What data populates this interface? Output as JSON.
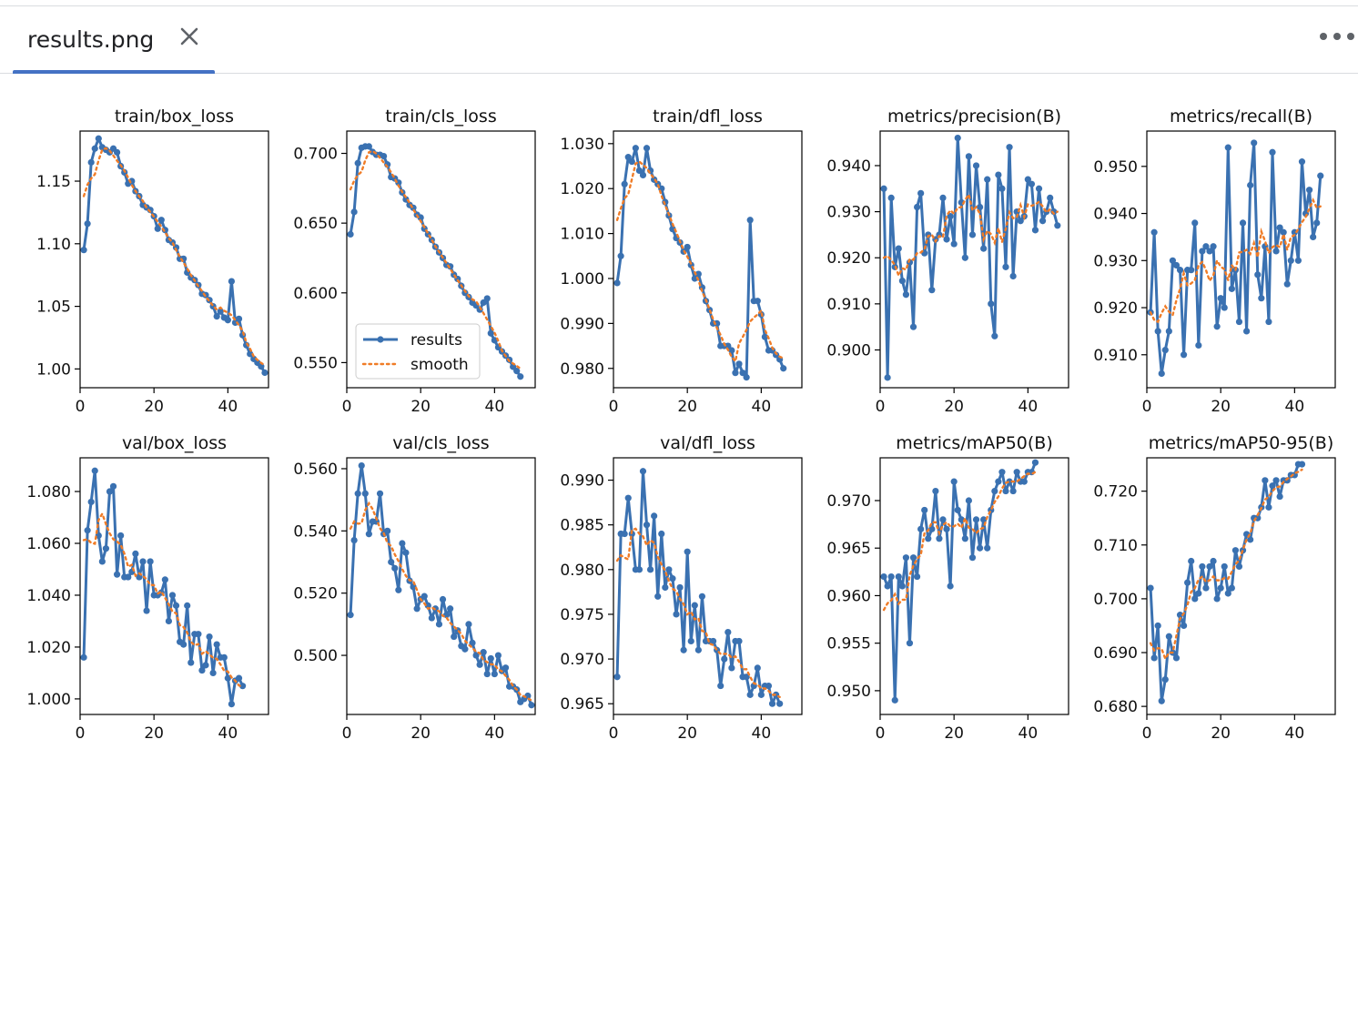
{
  "tab": {
    "title": "results.png"
  },
  "icons": {
    "close": "close-icon",
    "more": "more-horiz-icon"
  },
  "colors": {
    "series": "#3a71b1",
    "smooth": "#f07c27",
    "tab_accent": "#4472c4"
  },
  "chart_data": [
    {
      "type": "line",
      "title": "train/box_loss",
      "xlim": [
        0,
        51
      ],
      "xticks": [
        0,
        20,
        40
      ],
      "ylim": [
        0.985,
        1.19
      ],
      "yticks": [
        1.0,
        1.05,
        1.1,
        1.15
      ],
      "series": [
        {
          "name": "results",
          "values": [
            1.095,
            1.116,
            1.165,
            1.176,
            1.184,
            1.177,
            1.175,
            1.173,
            1.176,
            1.173,
            1.162,
            1.157,
            1.148,
            1.15,
            1.142,
            1.138,
            1.131,
            1.129,
            1.127,
            1.122,
            1.112,
            1.119,
            1.111,
            1.103,
            1.101,
            1.097,
            1.088,
            1.088,
            1.077,
            1.073,
            1.071,
            1.067,
            1.06,
            1.059,
            1.055,
            1.05,
            1.042,
            1.046,
            1.041,
            1.039,
            1.07,
            1.037,
            1.04,
            1.027,
            1.019,
            1.012,
            1.008,
            1.005,
            1.002,
            0.997
          ]
        },
        {
          "name": "smooth"
        }
      ]
    },
    {
      "type": "line",
      "title": "train/cls_loss",
      "xlim": [
        0,
        51
      ],
      "xticks": [
        0,
        20,
        40
      ],
      "ylim": [
        0.532,
        0.716
      ],
      "yticks": [
        0.55,
        0.6,
        0.65,
        0.7
      ],
      "legend": {
        "placement": "lower-left",
        "entries": [
          "results",
          "smooth"
        ]
      },
      "series": [
        {
          "name": "results",
          "values": [
            0.642,
            0.658,
            0.693,
            0.704,
            0.705,
            0.705,
            0.701,
            0.699,
            0.699,
            0.698,
            0.692,
            0.683,
            0.682,
            0.679,
            0.672,
            0.667,
            0.663,
            0.661,
            0.656,
            0.654,
            0.646,
            0.642,
            0.638,
            0.633,
            0.629,
            0.625,
            0.62,
            0.619,
            0.613,
            0.61,
            0.605,
            0.6,
            0.597,
            0.593,
            0.591,
            0.588,
            0.593,
            0.596,
            0.571,
            0.566,
            0.561,
            0.558,
            0.555,
            0.552,
            0.547,
            0.544,
            0.54
          ]
        },
        {
          "name": "smooth"
        }
      ]
    },
    {
      "type": "line",
      "title": "train/dfl_loss",
      "xlim": [
        0,
        51
      ],
      "xticks": [
        0,
        20,
        40
      ],
      "ylim": [
        0.9757,
        1.0328
      ],
      "yticks": [
        0.98,
        0.99,
        1.0,
        1.01,
        1.02,
        1.03
      ],
      "series": [
        {
          "name": "results",
          "values": [
            0.999,
            1.005,
            1.021,
            1.027,
            1.026,
            1.029,
            1.024,
            1.023,
            1.029,
            1.024,
            1.022,
            1.021,
            1.02,
            1.017,
            1.014,
            1.011,
            1.009,
            1.008,
            1.006,
            1.007,
            1.003,
            1.0,
            1.001,
            0.998,
            0.995,
            0.993,
            0.99,
            0.99,
            0.985,
            0.985,
            0.985,
            0.984,
            0.979,
            0.981,
            0.979,
            0.978,
            1.013,
            0.995,
            0.995,
            0.992,
            0.987,
            0.984,
            0.984,
            0.983,
            0.982,
            0.98
          ]
        },
        {
          "name": "smooth"
        }
      ]
    },
    {
      "type": "line",
      "title": "metrics/precision(B)",
      "xlim": [
        0,
        51
      ],
      "xticks": [
        0,
        20,
        40
      ],
      "ylim": [
        0.8918,
        0.9475
      ],
      "yticks": [
        0.9,
        0.91,
        0.92,
        0.93,
        0.94
      ],
      "series": [
        {
          "name": "results",
          "values": [
            0.935,
            0.894,
            0.933,
            0.918,
            0.922,
            0.915,
            0.912,
            0.919,
            0.905,
            0.931,
            0.934,
            0.921,
            0.925,
            0.913,
            0.924,
            0.925,
            0.933,
            0.924,
            0.929,
            0.923,
            0.946,
            0.932,
            0.92,
            0.942,
            0.925,
            0.94,
            0.931,
            0.922,
            0.937,
            0.91,
            0.903,
            0.938,
            0.935,
            0.918,
            0.944,
            0.916,
            0.93,
            0.928,
            0.929,
            0.937,
            0.936,
            0.926,
            0.935,
            0.928,
            0.93,
            0.933,
            0.93,
            0.927
          ]
        },
        {
          "name": "smooth"
        }
      ]
    },
    {
      "type": "line",
      "title": "metrics/recall(B)",
      "xlim": [
        0,
        51
      ],
      "xticks": [
        0,
        20,
        40
      ],
      "ylim": [
        0.903,
        0.9575
      ],
      "yticks": [
        0.91,
        0.92,
        0.93,
        0.94,
        0.95
      ],
      "series": [
        {
          "name": "results",
          "values": [
            0.919,
            0.936,
            0.915,
            0.906,
            0.911,
            0.915,
            0.93,
            0.929,
            0.928,
            0.91,
            0.928,
            0.928,
            0.938,
            0.912,
            0.932,
            0.933,
            0.932,
            0.933,
            0.916,
            0.922,
            0.92,
            0.954,
            0.924,
            0.928,
            0.917,
            0.938,
            0.915,
            0.946,
            0.955,
            0.927,
            0.922,
            0.933,
            0.917,
            0.953,
            0.932,
            0.937,
            0.936,
            0.925,
            0.93,
            0.936,
            0.93,
            0.951,
            0.94,
            0.945,
            0.935,
            0.938,
            0.948
          ]
        },
        {
          "name": "smooth"
        }
      ]
    },
    {
      "type": "line",
      "title": "val/box_loss",
      "xlim": [
        0,
        51
      ],
      "xticks": [
        0,
        20,
        40
      ],
      "ylim": [
        0.994,
        1.093
      ],
      "yticks": [
        1.0,
        1.02,
        1.04,
        1.06,
        1.08
      ],
      "series": [
        {
          "name": "results",
          "values": [
            1.016,
            1.065,
            1.076,
            1.088,
            1.063,
            1.053,
            1.058,
            1.08,
            1.082,
            1.048,
            1.063,
            1.047,
            1.047,
            1.049,
            1.056,
            1.047,
            1.053,
            1.034,
            1.053,
            1.04,
            1.04,
            1.041,
            1.046,
            1.03,
            1.04,
            1.036,
            1.022,
            1.021,
            1.036,
            1.014,
            1.025,
            1.025,
            1.011,
            1.013,
            1.024,
            1.01,
            1.021,
            1.016,
            1.016,
            1.008,
            0.998,
            1.007,
            1.008,
            1.005
          ]
        },
        {
          "name": "smooth"
        }
      ]
    },
    {
      "type": "line",
      "title": "val/cls_loss",
      "xlim": [
        0,
        51
      ],
      "xticks": [
        0,
        20,
        40
      ],
      "ylim": [
        0.481,
        0.5635
      ],
      "yticks": [
        0.5,
        0.52,
        0.54,
        0.56
      ],
      "series": [
        {
          "name": "results",
          "values": [
            0.513,
            0.537,
            0.552,
            0.561,
            0.552,
            0.539,
            0.543,
            0.543,
            0.552,
            0.539,
            0.54,
            0.53,
            0.528,
            0.521,
            0.536,
            0.533,
            0.524,
            0.522,
            0.515,
            0.518,
            0.519,
            0.516,
            0.512,
            0.515,
            0.51,
            0.518,
            0.513,
            0.515,
            0.506,
            0.508,
            0.503,
            0.502,
            0.51,
            0.504,
            0.5,
            0.497,
            0.501,
            0.494,
            0.499,
            0.494,
            0.5,
            0.495,
            0.496,
            0.49,
            0.49,
            0.489,
            0.485,
            0.486,
            0.487,
            0.484
          ]
        },
        {
          "name": "smooth"
        }
      ]
    },
    {
      "type": "line",
      "title": "val/dfl_loss",
      "xlim": [
        0,
        51
      ],
      "xticks": [
        0,
        20,
        40
      ],
      "ylim": [
        0.9638,
        0.9925
      ],
      "yticks": [
        0.965,
        0.97,
        0.975,
        0.98,
        0.985,
        0.99
      ],
      "series": [
        {
          "name": "results",
          "values": [
            0.968,
            0.984,
            0.984,
            0.988,
            0.984,
            0.98,
            0.98,
            0.991,
            0.985,
            0.98,
            0.986,
            0.977,
            0.984,
            0.978,
            0.98,
            0.979,
            0.975,
            0.978,
            0.971,
            0.982,
            0.972,
            0.976,
            0.971,
            0.977,
            0.972,
            0.972,
            0.972,
            0.971,
            0.967,
            0.97,
            0.973,
            0.969,
            0.972,
            0.972,
            0.968,
            0.968,
            0.966,
            0.967,
            0.969,
            0.966,
            0.967,
            0.967,
            0.965,
            0.966,
            0.965
          ]
        },
        {
          "name": "smooth"
        }
      ]
    },
    {
      "type": "line",
      "title": "metrics/mAP50(B)",
      "xlim": [
        0,
        51
      ],
      "xticks": [
        0,
        20,
        40
      ],
      "ylim": [
        0.9475,
        0.9745
      ],
      "yticks": [
        0.95,
        0.955,
        0.96,
        0.965,
        0.97
      ],
      "series": [
        {
          "name": "results",
          "values": [
            0.962,
            0.961,
            0.962,
            0.949,
            0.962,
            0.961,
            0.964,
            0.955,
            0.964,
            0.962,
            0.967,
            0.969,
            0.966,
            0.967,
            0.971,
            0.966,
            0.968,
            0.967,
            0.961,
            0.972,
            0.969,
            0.968,
            0.966,
            0.97,
            0.964,
            0.968,
            0.965,
            0.968,
            0.965,
            0.969,
            0.971,
            0.972,
            0.973,
            0.971,
            0.972,
            0.971,
            0.973,
            0.972,
            0.972,
            0.973,
            0.973,
            0.974
          ]
        },
        {
          "name": "smooth"
        }
      ]
    },
    {
      "type": "line",
      "title": "metrics/mAP50-95(B)",
      "xlim": [
        0,
        51
      ],
      "xticks": [
        0,
        20,
        40
      ],
      "ylim": [
        0.6785,
        0.7262
      ],
      "yticks": [
        0.68,
        0.69,
        0.7,
        0.71,
        0.72
      ],
      "series": [
        {
          "name": "results",
          "values": [
            0.702,
            0.689,
            0.695,
            0.681,
            0.685,
            0.693,
            0.69,
            0.689,
            0.697,
            0.695,
            0.703,
            0.707,
            0.7,
            0.701,
            0.706,
            0.702,
            0.706,
            0.707,
            0.7,
            0.702,
            0.706,
            0.701,
            0.702,
            0.709,
            0.706,
            0.709,
            0.712,
            0.711,
            0.715,
            0.715,
            0.717,
            0.722,
            0.717,
            0.721,
            0.722,
            0.719,
            0.722,
            0.722,
            0.723,
            0.723,
            0.725,
            0.725
          ]
        },
        {
          "name": "smooth"
        }
      ]
    }
  ]
}
